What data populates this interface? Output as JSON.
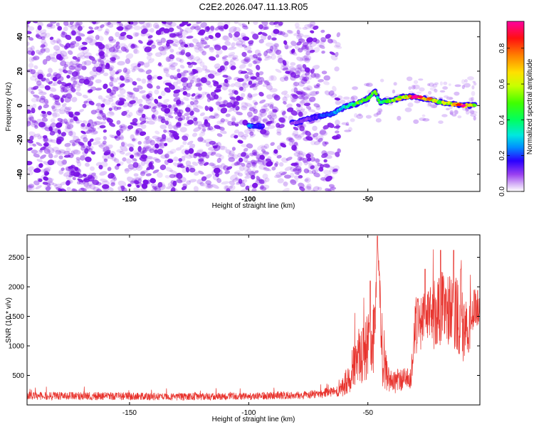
{
  "title": "C2E2.2026.047.11.13.R05",
  "colors": {
    "snr_line": "#e8332d",
    "noise_blob": "#7a12e6",
    "frame": "#000000"
  },
  "chart_data": [
    {
      "type": "heatmap",
      "name": "spectrogram",
      "xlabel": "Height of straight line (km)",
      "ylabel": "Frequency (Hz)",
      "xlim": [
        -193,
        -3
      ],
      "ylim": [
        -50,
        49
      ],
      "xticks": [
        -150,
        -100,
        -50
      ],
      "xtick_labels": [
        "-150",
        "-100",
        "-50"
      ],
      "yticks": [
        -40,
        -20,
        0,
        20,
        40
      ],
      "ytick_labels": [
        "-40",
        "-20",
        "0",
        "20",
        "40"
      ],
      "colorbar": {
        "label": "Normalized spectral amplitude",
        "range": [
          0,
          0.95
        ],
        "ticks": [
          0,
          0.2,
          0.4,
          0.6,
          0.8
        ],
        "tick_labels": [
          "0.0",
          "0.2",
          "0.4",
          "0.6",
          "0.8"
        ],
        "colormap": "rainbow (white-violet-blue-cyan-green-yellow-orange-red-magenta)"
      },
      "noise_region_x": [
        -193,
        -62
      ],
      "signal_track": [
        {
          "x": -100,
          "freq": -12,
          "amp": 0.25
        },
        {
          "x": -96,
          "freq": -12,
          "amp": 0.2
        },
        {
          "x": -80,
          "freq": -10,
          "amp": 0.1
        },
        {
          "x": -75,
          "freq": -8,
          "amp": 0.12
        },
        {
          "x": -70,
          "freq": -6,
          "amp": 0.2
        },
        {
          "x": -65,
          "freq": -5,
          "amp": 0.25
        },
        {
          "x": -60,
          "freq": -1,
          "amp": 0.35
        },
        {
          "x": -58,
          "freq": 0,
          "amp": 0.45
        },
        {
          "x": -55,
          "freq": 1,
          "amp": 0.5
        },
        {
          "x": -50,
          "freq": 4,
          "amp": 0.55
        },
        {
          "x": -47,
          "freq": 8,
          "amp": 0.5
        },
        {
          "x": -45,
          "freq": 2,
          "amp": 0.45
        },
        {
          "x": -40,
          "freq": 3,
          "amp": 0.55
        },
        {
          "x": -35,
          "freq": 5,
          "amp": 0.65
        },
        {
          "x": -30,
          "freq": 5,
          "amp": 0.95
        },
        {
          "x": -25,
          "freq": 4,
          "amp": 0.75
        },
        {
          "x": -20,
          "freq": 2,
          "amp": 0.6
        },
        {
          "x": -15,
          "freq": 1,
          "amp": 0.6
        },
        {
          "x": -10,
          "freq": 0,
          "amp": 0.95
        },
        {
          "x": -5,
          "freq": 0,
          "amp": 0.55
        }
      ]
    },
    {
      "type": "line",
      "name": "snr",
      "xlabel": "Height of straight line (km)",
      "ylabel": "SNR (10 * v/v)",
      "xlim": [
        -193,
        -3
      ],
      "ylim": [
        0,
        2880
      ],
      "xticks": [
        -150,
        -100,
        -50
      ],
      "xtick_labels": [
        "-150",
        "-100",
        "-50"
      ],
      "yticks": [
        500,
        1000,
        1500,
        2000,
        2500
      ],
      "ytick_labels": [
        "500",
        "1000",
        "1500",
        "2000",
        "2500"
      ],
      "envelope": [
        {
          "x": -193,
          "base": 130,
          "spread": 100
        },
        {
          "x": -160,
          "base": 130,
          "spread": 100
        },
        {
          "x": -130,
          "base": 120,
          "spread": 90
        },
        {
          "x": -100,
          "base": 130,
          "spread": 90
        },
        {
          "x": -75,
          "base": 150,
          "spread": 100
        },
        {
          "x": -62,
          "base": 200,
          "spread": 150
        },
        {
          "x": -58,
          "base": 350,
          "spread": 400
        },
        {
          "x": -55,
          "base": 650,
          "spread": 650
        },
        {
          "x": -50,
          "base": 800,
          "spread": 800
        },
        {
          "x": -47,
          "base": 1000,
          "spread": 900
        },
        {
          "x": -46,
          "base": 2860,
          "spread": 0
        },
        {
          "x": -44,
          "base": 700,
          "spread": 900
        },
        {
          "x": -41,
          "base": 300,
          "spread": 300
        },
        {
          "x": -37,
          "base": 350,
          "spread": 300
        },
        {
          "x": -32,
          "base": 400,
          "spread": 250
        },
        {
          "x": -30,
          "base": 1200,
          "spread": 700
        },
        {
          "x": -25,
          "base": 1300,
          "spread": 700
        },
        {
          "x": -20,
          "base": 1400,
          "spread": 1000
        },
        {
          "x": -16,
          "base": 1400,
          "spread": 900
        },
        {
          "x": -12,
          "base": 1300,
          "spread": 1000
        },
        {
          "x": -8,
          "base": 1000,
          "spread": 700
        },
        {
          "x": -6,
          "base": 1500,
          "spread": 500
        },
        {
          "x": -3,
          "base": 1600,
          "spread": 400
        }
      ]
    }
  ]
}
